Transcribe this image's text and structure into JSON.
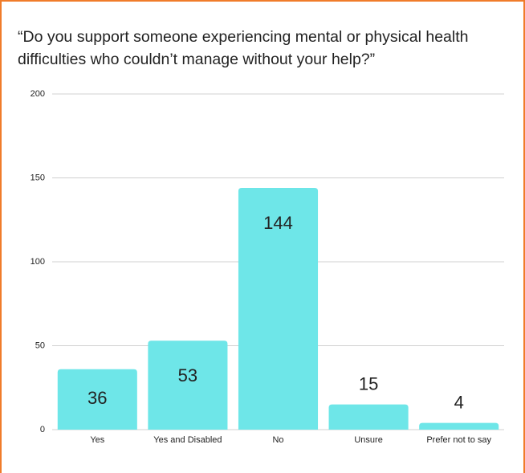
{
  "chart_data": {
    "type": "bar",
    "title": "“Do you support someone experiencing mental or physical health difficulties who couldn’t manage without your help?”",
    "categories": [
      "Yes",
      "Yes and Disabled",
      "No",
      "Unsure",
      "Prefer not to say"
    ],
    "values": [
      36,
      53,
      144,
      15,
      4
    ],
    "color": "#6ee6e8",
    "ylim": [
      0,
      200
    ],
    "yticks": [
      0,
      50,
      100,
      150,
      200
    ],
    "grid": true
  }
}
